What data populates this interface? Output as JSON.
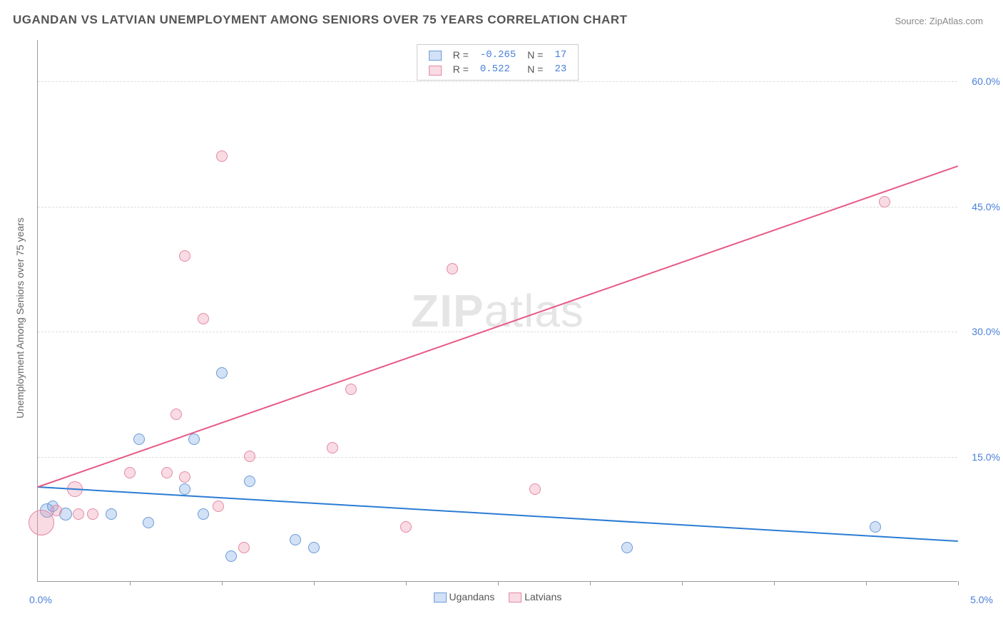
{
  "title": "UGANDAN VS LATVIAN UNEMPLOYMENT AMONG SENIORS OVER 75 YEARS CORRELATION CHART",
  "source": "Source: ZipAtlas.com",
  "y_axis_label": "Unemployment Among Seniors over 75 years",
  "watermark_bold": "ZIP",
  "watermark_light": "atlas",
  "chart": {
    "type": "scatter",
    "xlim": [
      0,
      5
    ],
    "ylim": [
      0,
      65
    ],
    "x_left_label": "0.0%",
    "x_right_label": "5.0%",
    "y_ticks": [
      15,
      30,
      45,
      60
    ],
    "y_tick_labels": [
      "15.0%",
      "30.0%",
      "45.0%",
      "60.0%"
    ],
    "x_tick_positions": [
      0.5,
      1,
      1.5,
      2,
      2.5,
      3,
      3.5,
      4,
      4.5,
      5
    ],
    "background_color": "#ffffff",
    "grid_color": "#dddddd",
    "axis_color": "#999999",
    "series": [
      {
        "name": "Ugandans",
        "fill": "rgba(125,168,227,0.35)",
        "stroke": "#6b9ad8",
        "trend_color": "#2b7cd3",
        "r_value": "-0.265",
        "n_value": "17",
        "trend": {
          "x1": 0,
          "y1": 11.5,
          "x2": 5,
          "y2": 5
        },
        "points": [
          {
            "x": 0.05,
            "y": 8.5,
            "r": 10
          },
          {
            "x": 0.08,
            "y": 9,
            "r": 8
          },
          {
            "x": 0.15,
            "y": 8,
            "r": 9
          },
          {
            "x": 0.4,
            "y": 8,
            "r": 8
          },
          {
            "x": 0.55,
            "y": 17,
            "r": 8
          },
          {
            "x": 0.6,
            "y": 7,
            "r": 8
          },
          {
            "x": 0.8,
            "y": 11,
            "r": 8
          },
          {
            "x": 0.85,
            "y": 17,
            "r": 8
          },
          {
            "x": 0.9,
            "y": 8,
            "r": 8
          },
          {
            "x": 1.0,
            "y": 25,
            "r": 8
          },
          {
            "x": 1.05,
            "y": 3,
            "r": 8
          },
          {
            "x": 1.15,
            "y": 12,
            "r": 8
          },
          {
            "x": 1.4,
            "y": 5,
            "r": 8
          },
          {
            "x": 1.5,
            "y": 4,
            "r": 8
          },
          {
            "x": 3.2,
            "y": 4,
            "r": 8
          },
          {
            "x": 4.55,
            "y": 6.5,
            "r": 8
          }
        ]
      },
      {
        "name": "Latvians",
        "fill": "rgba(238,153,176,0.35)",
        "stroke": "#e389a5",
        "trend_color": "#e75a85",
        "r_value": "0.522",
        "n_value": "23",
        "trend": {
          "x1": 0,
          "y1": 11.5,
          "x2": 5,
          "y2": 50
        },
        "points": [
          {
            "x": 0.02,
            "y": 7,
            "r": 18
          },
          {
            "x": 0.1,
            "y": 8.5,
            "r": 8
          },
          {
            "x": 0.2,
            "y": 11,
            "r": 11
          },
          {
            "x": 0.22,
            "y": 8,
            "r": 8
          },
          {
            "x": 0.3,
            "y": 8,
            "r": 8
          },
          {
            "x": 0.5,
            "y": 13,
            "r": 8
          },
          {
            "x": 0.7,
            "y": 13,
            "r": 8
          },
          {
            "x": 0.75,
            "y": 20,
            "r": 8
          },
          {
            "x": 0.8,
            "y": 12.5,
            "r": 8
          },
          {
            "x": 0.8,
            "y": 39,
            "r": 8
          },
          {
            "x": 0.9,
            "y": 31.5,
            "r": 8
          },
          {
            "x": 0.98,
            "y": 9,
            "r": 8
          },
          {
            "x": 1.0,
            "y": 51,
            "r": 8
          },
          {
            "x": 1.12,
            "y": 4,
            "r": 8
          },
          {
            "x": 1.15,
            "y": 15,
            "r": 8
          },
          {
            "x": 1.6,
            "y": 16,
            "r": 8
          },
          {
            "x": 1.7,
            "y": 23,
            "r": 8
          },
          {
            "x": 2.0,
            "y": 6.5,
            "r": 8
          },
          {
            "x": 2.25,
            "y": 37.5,
            "r": 8
          },
          {
            "x": 2.7,
            "y": 11,
            "r": 8
          },
          {
            "x": 4.6,
            "y": 45.5,
            "r": 8
          }
        ]
      }
    ]
  },
  "colors": {
    "title": "#555555",
    "source": "#888888",
    "tick_label": "#4a7fd8",
    "stat_value": "#4a7fd8"
  }
}
